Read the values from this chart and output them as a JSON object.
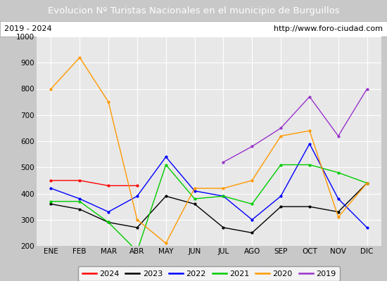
{
  "title": "Evolucion Nº Turistas Nacionales en el municipio de Burguillos",
  "subtitle_left": "2019 - 2024",
  "subtitle_right": "http://www.foro-ciudad.com",
  "title_bg_color": "#4d7ebf",
  "title_text_color": "#ffffff",
  "subtitle_bg_color": "#ffffff",
  "fig_bg_color": "#c8c8c8",
  "plot_bg_color": "#e8e8e8",
  "months": [
    "ENE",
    "FEB",
    "MAR",
    "ABR",
    "MAY",
    "JUN",
    "JUL",
    "AGO",
    "SEP",
    "OCT",
    "NOV",
    "DIC"
  ],
  "ylim": [
    200,
    1000
  ],
  "yticks": [
    200,
    300,
    400,
    500,
    600,
    700,
    800,
    900,
    1000
  ],
  "series": {
    "2024": {
      "color": "#ff0000",
      "values": [
        450,
        450,
        430,
        430,
        null,
        null,
        null,
        null,
        null,
        null,
        null,
        null
      ]
    },
    "2023": {
      "color": "#000000",
      "values": [
        360,
        340,
        290,
        270,
        390,
        360,
        270,
        250,
        350,
        350,
        330,
        440
      ]
    },
    "2022": {
      "color": "#0000ff",
      "values": [
        420,
        380,
        330,
        390,
        540,
        410,
        390,
        300,
        390,
        590,
        380,
        270
      ]
    },
    "2021": {
      "color": "#00cc00",
      "values": [
        370,
        370,
        290,
        180,
        510,
        380,
        390,
        360,
        510,
        510,
        480,
        440
      ]
    },
    "2020": {
      "color": "#ff9900",
      "values": [
        800,
        920,
        750,
        300,
        210,
        420,
        420,
        450,
        620,
        640,
        310,
        440
      ]
    },
    "2019": {
      "color": "#9933cc",
      "values": [
        null,
        null,
        null,
        null,
        null,
        null,
        520,
        580,
        650,
        770,
        620,
        800
      ]
    }
  },
  "legend_order": [
    "2024",
    "2023",
    "2022",
    "2021",
    "2020",
    "2019"
  ],
  "figsize": [
    5.5,
    4.0
  ],
  "dpi": 100
}
